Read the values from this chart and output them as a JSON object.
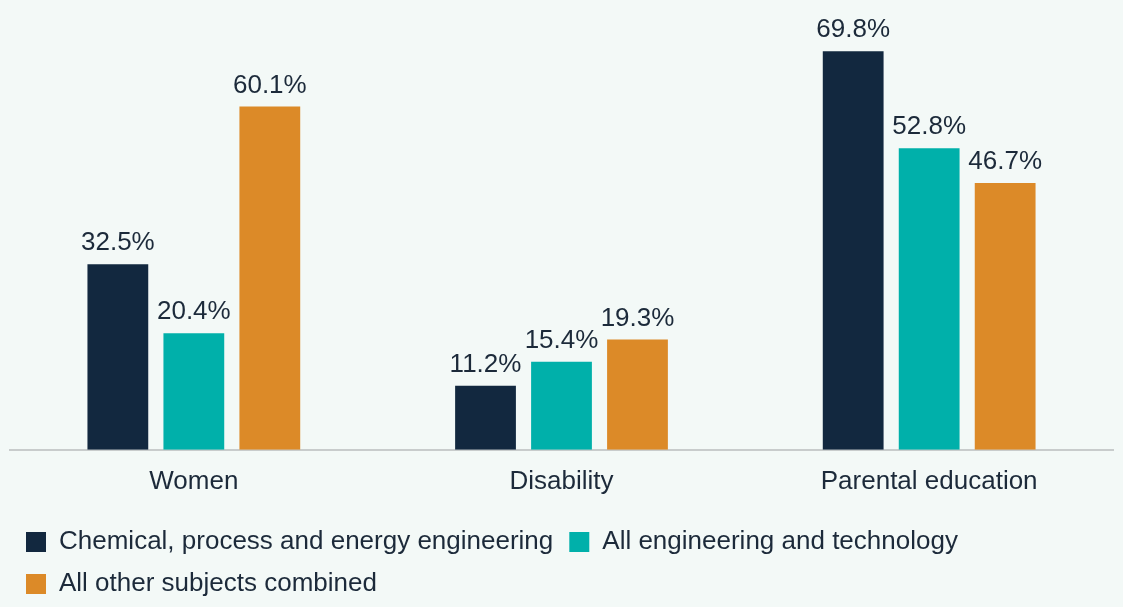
{
  "chart_data": {
    "type": "bar",
    "categories": [
      "Women",
      "Disability",
      "Parental education"
    ],
    "series": [
      {
        "name": "Chemical, process and energy engineering",
        "color": "#12283f",
        "values": [
          32.5,
          11.2,
          69.8
        ],
        "value_labels": [
          "32.5%",
          "11.2%",
          "69.8%"
        ]
      },
      {
        "name": "All engineering and technology",
        "color": "#00b0aa",
        "values": [
          20.4,
          15.4,
          52.8
        ],
        "value_labels": [
          "20.4%",
          "15.4%",
          "52.8%"
        ]
      },
      {
        "name": "All other subjects combined",
        "color": "#dc8a28",
        "values": [
          60.1,
          19.3,
          46.7
        ],
        "value_labels": [
          "60.1%",
          "19.3%",
          "46.7%"
        ]
      }
    ],
    "legend": "bottom",
    "grid": false,
    "tick_labels": "x"
  }
}
